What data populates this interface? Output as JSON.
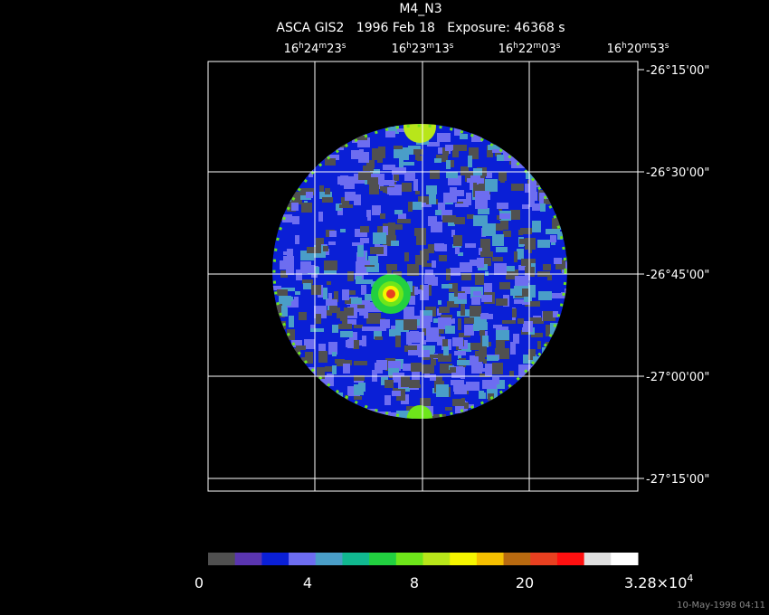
{
  "header": {
    "title": "M4_N3",
    "subtitle": "ASCA GIS2   1996 Feb 18   Exposure: 46368 s"
  },
  "ra_labels": [
    [
      "16",
      "h",
      "24",
      "m",
      "23",
      "s"
    ],
    [
      "16",
      "h",
      "23",
      "m",
      "13",
      "s"
    ],
    [
      "16",
      "h",
      "22",
      "m",
      "03",
      "s"
    ],
    [
      "16",
      "h",
      "20",
      "m",
      "53",
      "s"
    ]
  ],
  "dec_labels": [
    "-26°15'00\"",
    "-26°30'00\"",
    "-26°45'00\"",
    "-27°00'00\"",
    "-27°15'00\""
  ],
  "colorbar": {
    "colors": [
      "#505050",
      "#5a35b0",
      "#0a1fd6",
      "#6d6df0",
      "#4a9ec8",
      "#11b890",
      "#22d040",
      "#6ee61a",
      "#b8e61a",
      "#f5f500",
      "#f5c000",
      "#b86a10",
      "#e84020",
      "#ff1010",
      "#e0e0e0",
      "#ffffff"
    ],
    "labels": [
      "0",
      "4",
      "8",
      "20"
    ],
    "max_label": [
      "3.28×10",
      "4"
    ]
  },
  "timestamp": "10-May-1998 04:11"
}
